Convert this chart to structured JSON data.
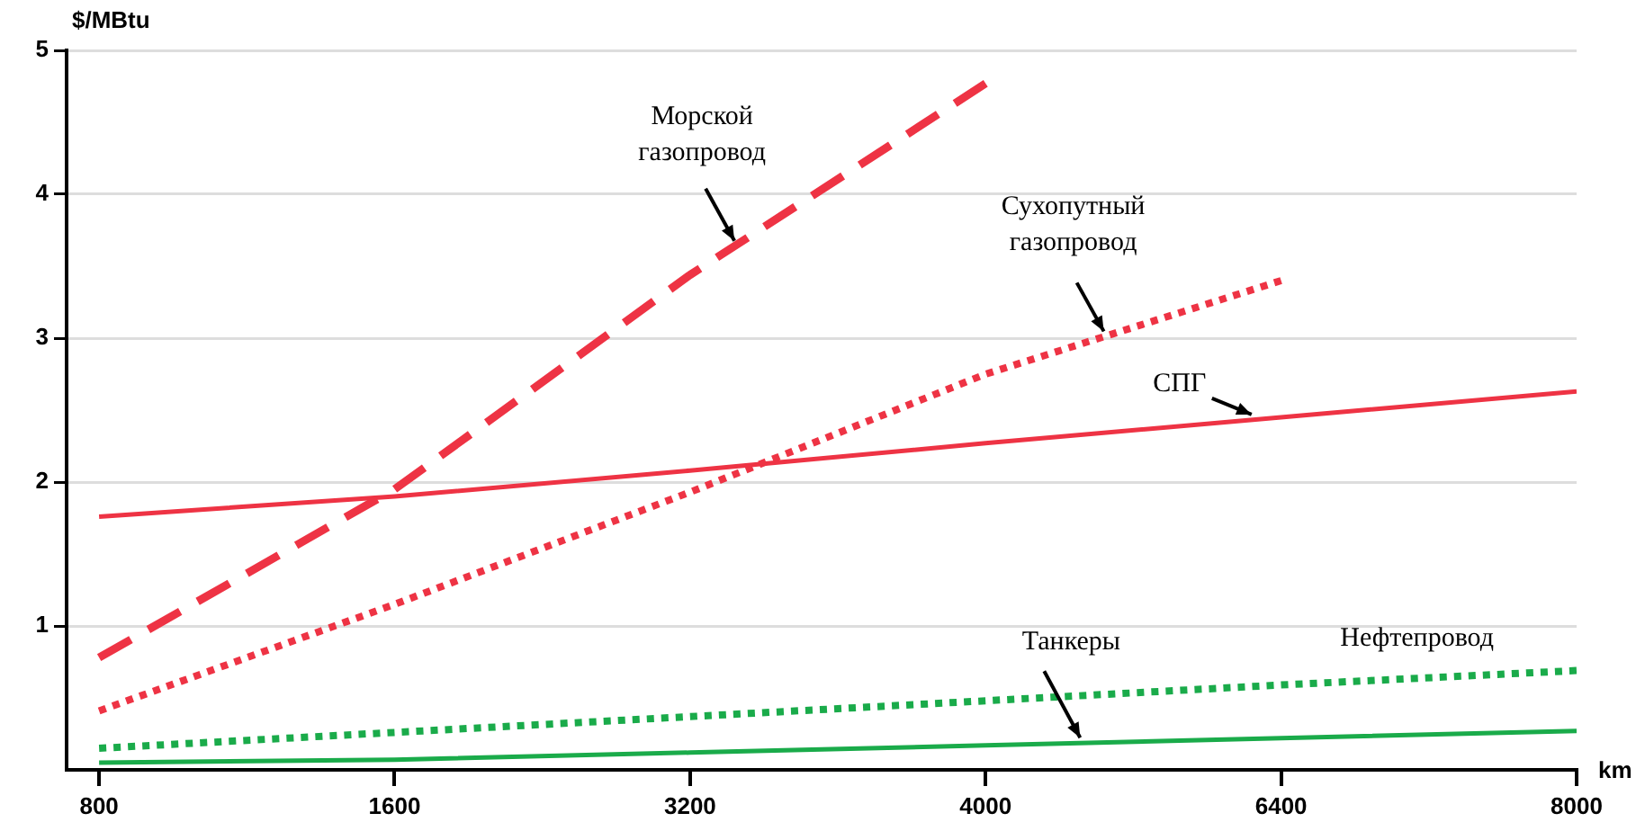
{
  "chart_data": {
    "type": "line",
    "xlabel": "km",
    "ylabel": "$/MBtu",
    "categories": [
      "800",
      "1600",
      "3200",
      "4000",
      "6400",
      "8000"
    ],
    "series": [
      {
        "name": "Морской газопровод",
        "color": "#ee3344",
        "line_style": "dashed",
        "values": [
          0.78,
          1.95,
          3.44,
          4.77,
          null,
          null
        ]
      },
      {
        "name": "Сухопутный газопровод",
        "color": "#ee3344",
        "line_style": "dotted",
        "values": [
          0.41,
          1.15,
          1.93,
          2.75,
          3.4,
          null
        ]
      },
      {
        "name": "СПГ",
        "color": "#ee3344",
        "line_style": "solid",
        "values": [
          1.76,
          1.9,
          2.08,
          2.27,
          2.45,
          2.63
        ]
      },
      {
        "name": "Танкеры",
        "color": "#1aab4a",
        "line_style": "solid",
        "values": [
          0.05,
          0.07,
          0.12,
          0.17,
          0.22,
          0.27
        ]
      },
      {
        "name": "Нефтепровод",
        "color": "#1aab4a",
        "line_style": "dotted",
        "values": [
          0.15,
          0.26,
          0.37,
          0.48,
          0.59,
          0.69
        ]
      }
    ],
    "ylim": [
      0,
      5
    ],
    "yticks": [
      1,
      2,
      3,
      4,
      5
    ],
    "grid": "y",
    "marker": "none"
  }
}
